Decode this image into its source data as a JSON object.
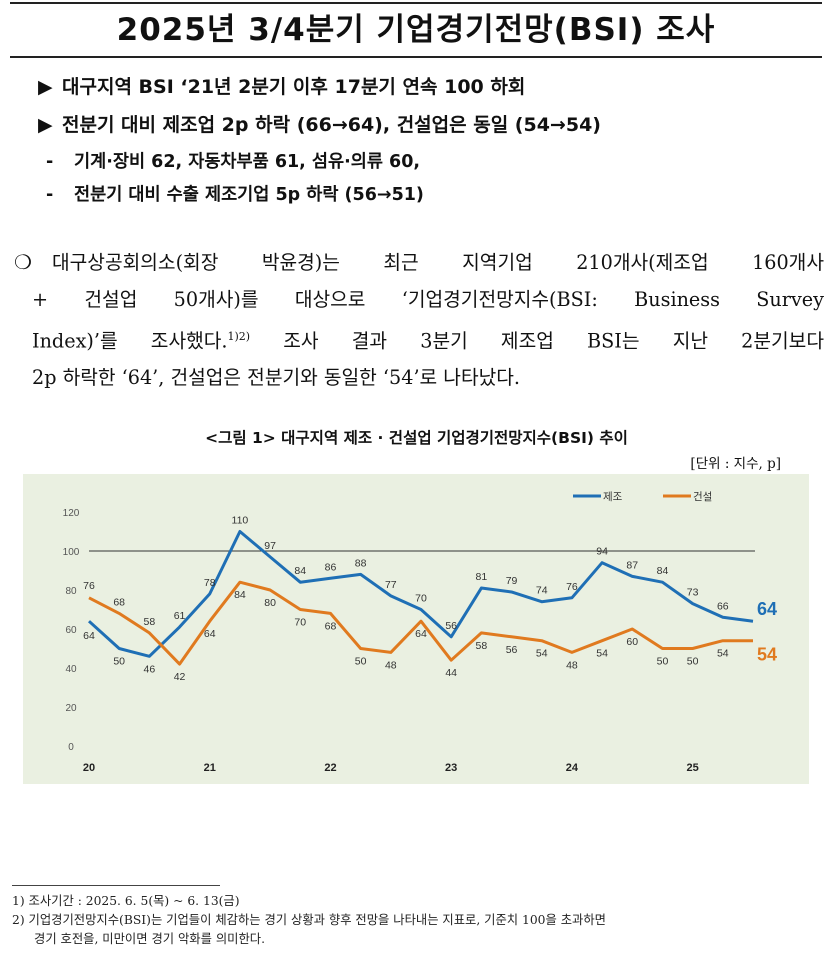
{
  "title": "2025년 3/4분기 기업경기전망(BSI) 조사",
  "headlines": [
    {
      "mark": "▶",
      "text": "대구지역 BSI ‘21년 2분기 이후 17분기 연속 100 하회"
    },
    {
      "mark": "▶",
      "text": "전분기 대비 제조업 2p 하락 (66→64), 건설업은 동일 (54→54)"
    }
  ],
  "sublines": [
    {
      "mark": "-",
      "text": "기계·장비 62, 자동차부품 61, 섬유·의류 60,"
    },
    {
      "mark": "-",
      "text": "전분기 대비 수출 제조기업 5p 하락 (56→51)"
    }
  ],
  "paragraph": {
    "bullet": "❍",
    "line1": "대구상공회의소(회장 박윤경)는 최근 지역기업 210개사(제조업 160개사",
    "line2": "+ 건설업 50개사)를 대상으로 ‘기업경기전망지수(BSI: Business Survey",
    "line3a": "Index)’를 조사했다.",
    "line3sup": "1)2)",
    "line3b": " 조사 결과 3분기 제조업 BSI는 지난 2분기보다",
    "line4": "2p 하락한 ‘64’, 건설업은 전분기와 동일한 ‘54’로 나타났다."
  },
  "figure": {
    "caption": "<그림 1> 대구지역 제조 · 건설업 기업경기전망지수(BSI) 추이",
    "unit": "[단위 : 지수, p]"
  },
  "chart_data": {
    "type": "line",
    "title": "",
    "xlabel": "",
    "ylabel": "",
    "ylim": [
      0,
      120
    ],
    "yticks": [
      0,
      20,
      40,
      60,
      80,
      100,
      120
    ],
    "reference_line": 100,
    "x_year_labels": [
      "20",
      "21",
      "22",
      "23",
      "24",
      "25"
    ],
    "grid": false,
    "legend_position": "top-right",
    "series": [
      {
        "name": "제조",
        "color": "#1f6fb5",
        "values": [
          64,
          50,
          46,
          61,
          78,
          110,
          97,
          84,
          86,
          88,
          77,
          70,
          56,
          81,
          79,
          74,
          76,
          94,
          87,
          84,
          73,
          66,
          64
        ],
        "end_label": "64"
      },
      {
        "name": "건설",
        "color": "#e07a1f",
        "values": [
          76,
          68,
          58,
          42,
          64,
          84,
          80,
          70,
          68,
          50,
          48,
          64,
          44,
          58,
          56,
          54,
          48,
          54,
          60,
          50,
          50,
          54,
          54
        ],
        "end_label": "54"
      }
    ]
  },
  "footnotes": {
    "fn1": "1) 조사기간 : 2025. 6. 5(목) ~ 6. 13(금)",
    "fn2": "2) 기업경기전망지수(BSI)는 기업들이 체감하는 경기 상황과 향후 전망을 나타내는 지표로, 기준치 100을 초과하면",
    "fn2b": "경기 호전을, 미만이면 경기 악화를 의미한다."
  }
}
